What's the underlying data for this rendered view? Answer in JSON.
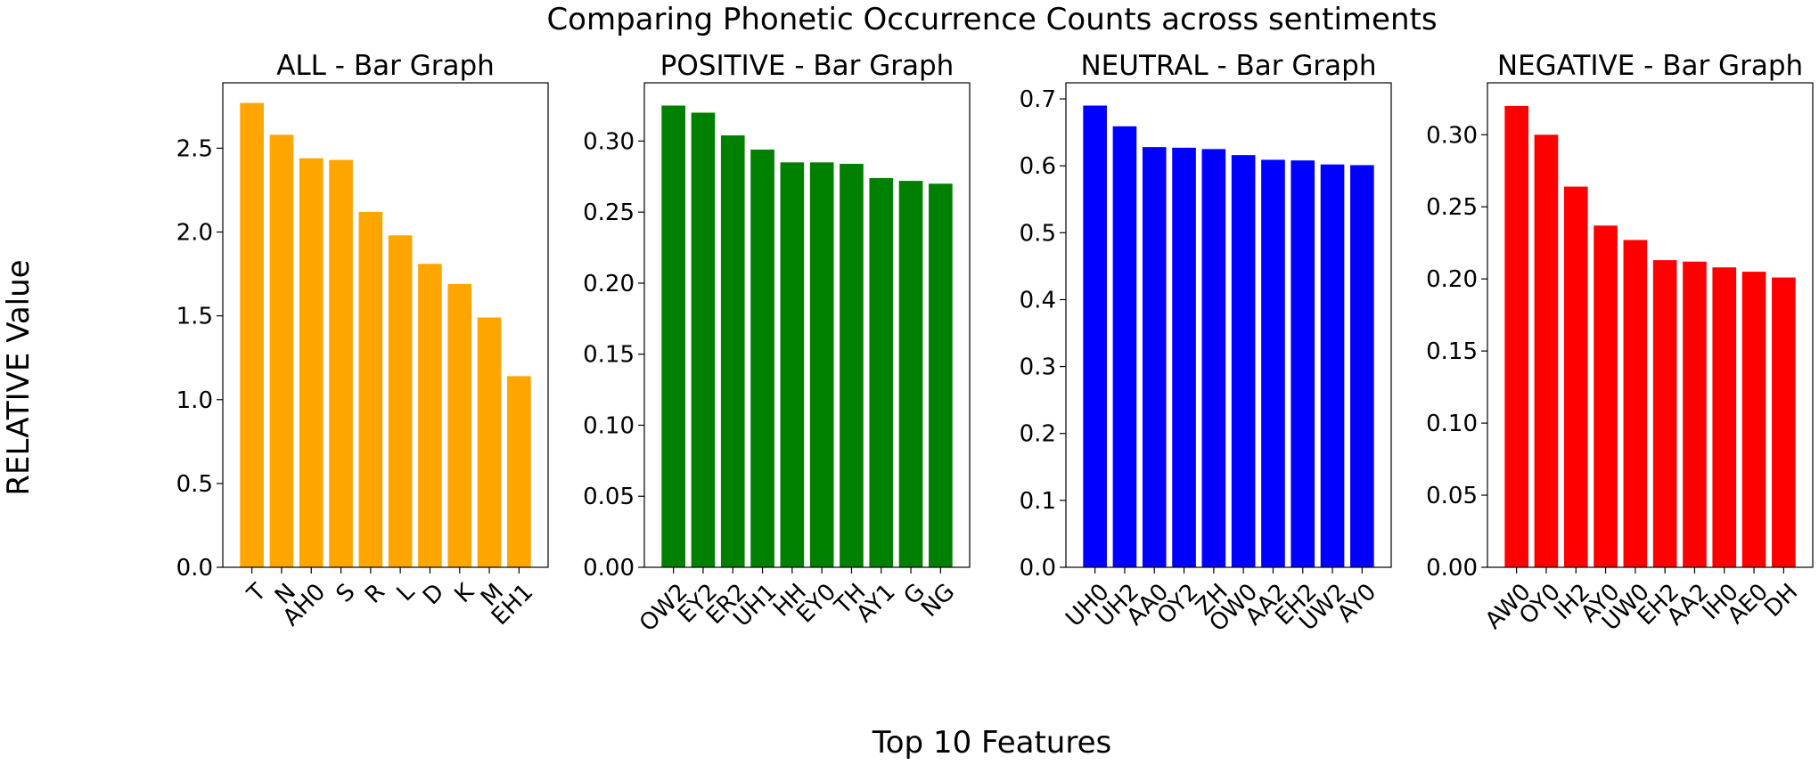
{
  "figure": {
    "suptitle": "Comparing Phonetic Occurrence Counts across sentiments",
    "ylabel": "RELATIVE Value",
    "xlabel": "Top 10 Features"
  },
  "chart_data": [
    {
      "type": "bar",
      "title": "ALL - Bar Graph",
      "color": "#ffa500",
      "categories": [
        "T",
        "N",
        "AH0",
        "S",
        "R",
        "L",
        "D",
        "K",
        "M",
        "EH1"
      ],
      "values": [
        2.77,
        2.58,
        2.44,
        2.43,
        2.12,
        1.98,
        1.81,
        1.69,
        1.49,
        1.14
      ],
      "ylim": [
        0,
        2.89
      ],
      "yticks": [
        0.0,
        0.5,
        1.0,
        1.5,
        2.0,
        2.5
      ],
      "ytick_labels": [
        "0.0",
        "0.5",
        "1.0",
        "1.5",
        "2.0",
        "2.5"
      ]
    },
    {
      "type": "bar",
      "title": "POSITIVE - Bar Graph",
      "color": "#008000",
      "categories": [
        "OW2",
        "EY2",
        "ER2",
        "UH1",
        "HH",
        "EY0",
        "TH",
        "AY1",
        "G",
        "NG"
      ],
      "values": [
        0.325,
        0.32,
        0.304,
        0.294,
        0.285,
        0.285,
        0.284,
        0.274,
        0.272,
        0.27
      ],
      "ylim": [
        0,
        0.341
      ],
      "yticks": [
        0.0,
        0.05,
        0.1,
        0.15,
        0.2,
        0.25,
        0.3
      ],
      "ytick_labels": [
        "0.00",
        "0.05",
        "0.10",
        "0.15",
        "0.20",
        "0.25",
        "0.30"
      ]
    },
    {
      "type": "bar",
      "title": "NEUTRAL - Bar Graph",
      "color": "#0000ff",
      "categories": [
        "UH0",
        "UH2",
        "AA0",
        "OY2",
        "ZH",
        "OW0",
        "AA2",
        "EH2",
        "UW2",
        "AY0"
      ],
      "values": [
        0.69,
        0.659,
        0.628,
        0.627,
        0.625,
        0.616,
        0.609,
        0.608,
        0.602,
        0.601
      ],
      "ylim": [
        0,
        0.724
      ],
      "yticks": [
        0.0,
        0.1,
        0.2,
        0.3,
        0.4,
        0.5,
        0.6,
        0.7
      ],
      "ytick_labels": [
        "0.0",
        "0.1",
        "0.2",
        "0.3",
        "0.4",
        "0.5",
        "0.6",
        "0.7"
      ]
    },
    {
      "type": "bar",
      "title": "NEGATIVE - Bar Graph",
      "color": "#ff0000",
      "categories": [
        "AW0",
        "OY0",
        "IH2",
        "AY0",
        "UW0",
        "EH2",
        "AA2",
        "IH0",
        "AE0",
        "DH"
      ],
      "values": [
        0.32,
        0.3,
        0.264,
        0.237,
        0.227,
        0.213,
        0.212,
        0.208,
        0.205,
        0.201
      ],
      "ylim": [
        0,
        0.336
      ],
      "yticks": [
        0.0,
        0.05,
        0.1,
        0.15,
        0.2,
        0.25,
        0.3
      ],
      "ytick_labels": [
        "0.00",
        "0.05",
        "0.10",
        "0.15",
        "0.20",
        "0.25",
        "0.30"
      ]
    }
  ]
}
